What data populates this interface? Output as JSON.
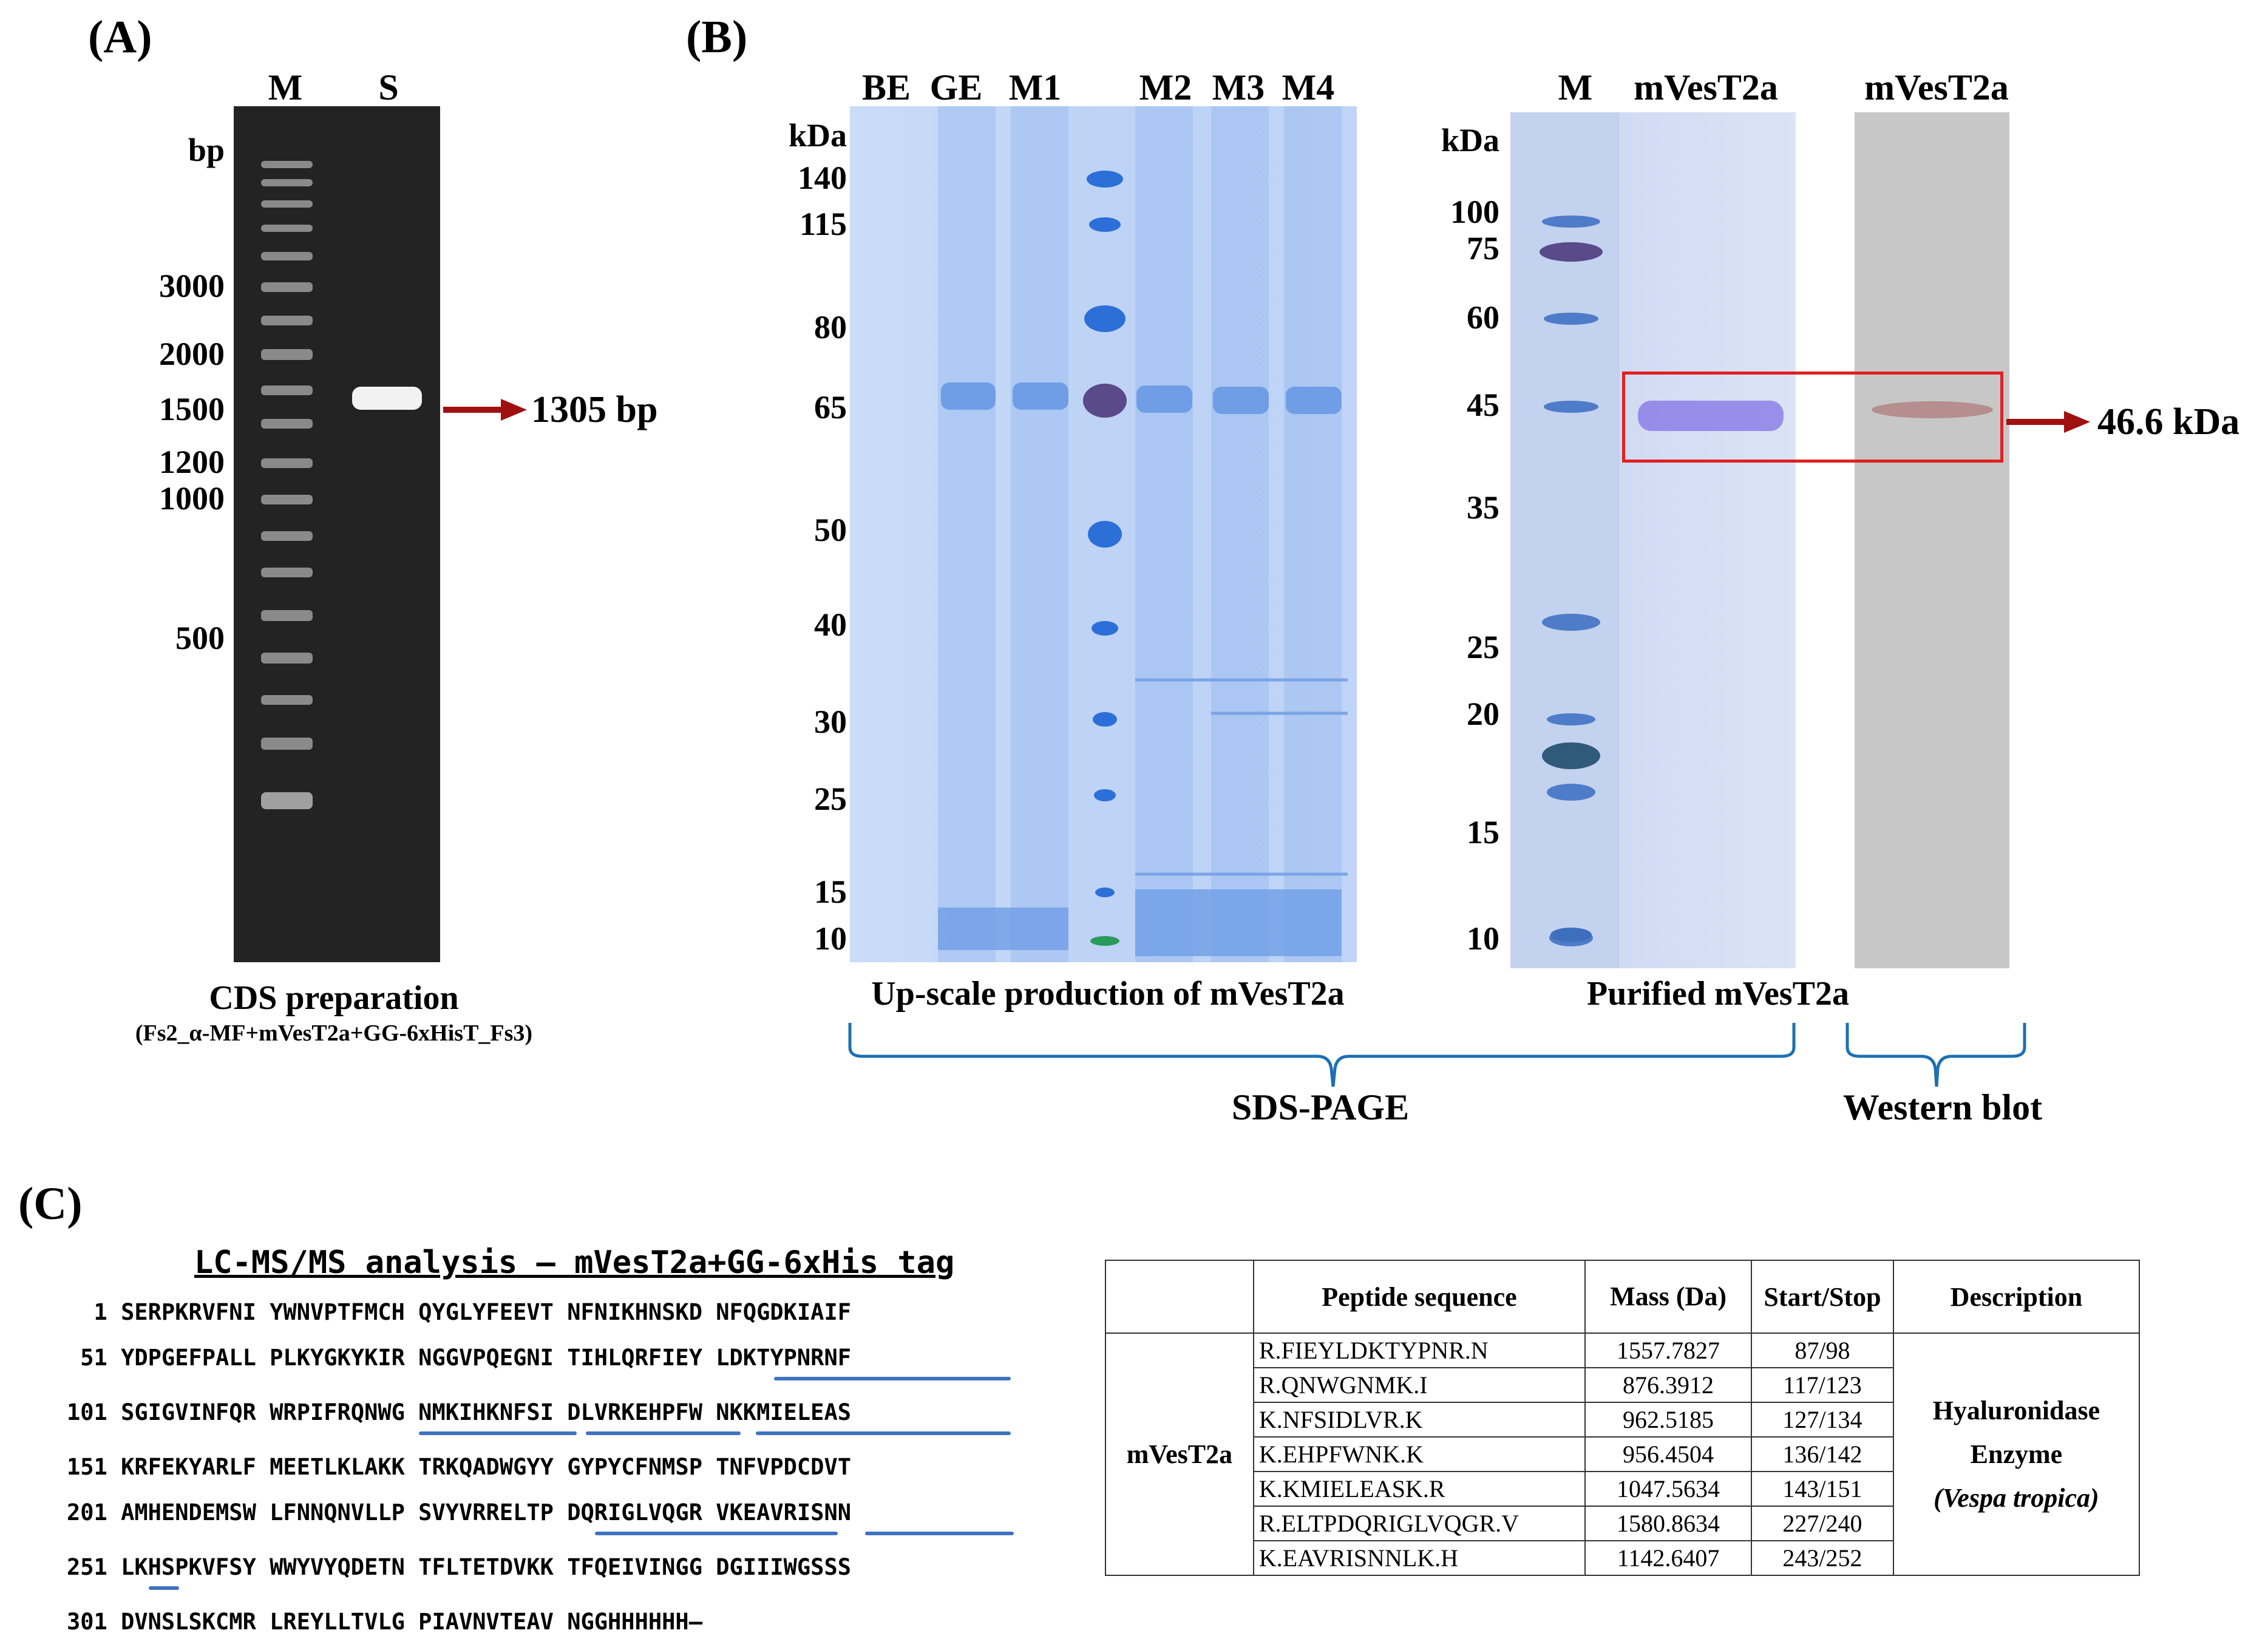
{
  "panelA": {
    "label": "(A)",
    "lanes": [
      "M",
      "S"
    ],
    "unit": "bp",
    "markers": [
      "3000",
      "2000",
      "1500",
      "1200",
      "1000",
      "500"
    ],
    "arrow_label": "1305 bp",
    "caption": "CDS preparation",
    "subcaption": "(Fs2_α-MF+mVesT2a+GG-6xHisT_Fs3)"
  },
  "panelB": {
    "label": "(B)",
    "gel1": {
      "lanes": [
        "BE",
        "GE",
        "M1",
        "M2",
        "M3",
        "M4"
      ],
      "unit": "kDa",
      "markers": [
        "140",
        "115",
        "80",
        "65",
        "50",
        "40",
        "30",
        "25",
        "15",
        "10"
      ],
      "caption": "Up-scale production of mVesT2a"
    },
    "gel2": {
      "lanes": [
        "M",
        "mVesT2a"
      ],
      "unit": "kDa",
      "markers": [
        "100",
        "75",
        "60",
        "45",
        "35",
        "25",
        "20",
        "15",
        "10"
      ],
      "caption": "Purified mVesT2a"
    },
    "blot": {
      "lane": "mVesT2a"
    },
    "arrow_label": "46.6 kDa",
    "brace_sds": "SDS-PAGE",
    "brace_wb": "Western blot"
  },
  "panelC": {
    "label": "(C)",
    "title": "LC-MS/MS analysis – mVesT2a+GG-6xHis tag",
    "sequence_lines": [
      "  1 SERPKRVFNI YWNVPTFMCH QYGLYFEEVT NFNIKHNSKD NFQGDKIAIF",
      " 51 YDPGEFPALL PLKYGKYKIR NGGVPQEGNI TIHLQRFIEY LDKTYPNRNF",
      "101 SGIGVINFQR WRPIFRQNWG NMKIHKNFSI DLVRKEHPFW NKKMIELEAS",
      "151 KRFEKYARLF MEETLKLAKK TRKQADWGYY GYPYCFNMSP TNFVPDCDVT",
      "201 AMHENDEMSW LFNNQNVLLP SVYVRRELTP DQRIGLVQGR VKEAVRISNN",
      "251 LKHSPKVFSY WWYVYQDETN TFLTETDVKK TFQEIVINGG DGIIIWGSSS",
      "301 DVNSLSKCMR LREYLLTVLG PIAVNVTEAV NGGHHHHHH–"
    ],
    "table": {
      "headers": [
        "",
        "Peptide sequence",
        "Mass (Da)",
        "Start/Stop",
        "Description"
      ],
      "protein": "mVesT2a",
      "rows": [
        {
          "seq": "R.FIEYLDKTYPNR.N",
          "mass": "1557.7827",
          "pos": "87/98"
        },
        {
          "seq": "R.QNWGNMK.I",
          "mass": "876.3912",
          "pos": "117/123"
        },
        {
          "seq": "K.NFSIDLVR.K",
          "mass": "962.5185",
          "pos": "127/134"
        },
        {
          "seq": "K.EHPFWNK.K",
          "mass": "956.4504",
          "pos": "136/142"
        },
        {
          "seq": "K.KMIELEASK.R",
          "mass": "1047.5634",
          "pos": "143/151"
        },
        {
          "seq": "R.ELTPDQRIGLVQGR.V",
          "mass": "1580.8634",
          "pos": "227/240"
        },
        {
          "seq": "K.EAVRISNNLK.H",
          "mass": "1142.6407",
          "pos": "243/252"
        }
      ],
      "description": [
        "Hyaluronidase",
        "Enzyme",
        "(Vespa tropica)"
      ]
    }
  }
}
